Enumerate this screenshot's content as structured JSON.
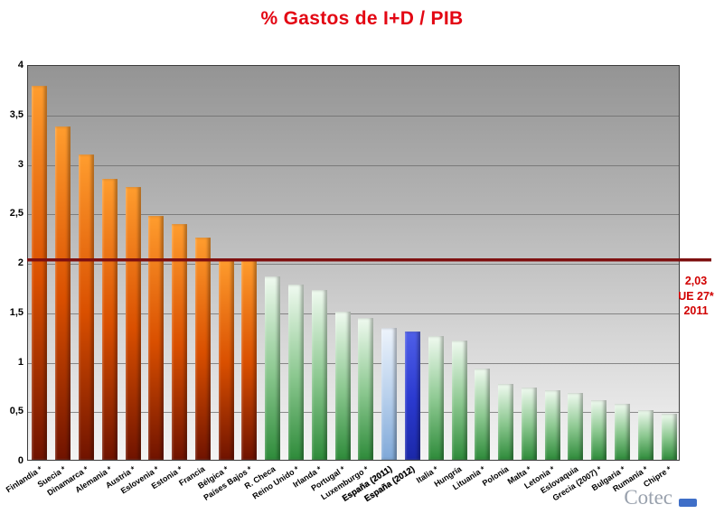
{
  "title": "% Gastos de I+D / PIB",
  "logo": {
    "text": "Cotec",
    "mark_color": "#3f6fc8"
  },
  "chart_data": {
    "type": "bar",
    "title": "% Gastos de I+D / PIB",
    "ylabel": "",
    "xlabel": "",
    "ylim": [
      0,
      4
    ],
    "grid": true,
    "legend_position": "none",
    "yticks": [
      {
        "value": 0,
        "label": "0"
      },
      {
        "value": 0.5,
        "label": "0,5"
      },
      {
        "value": 1,
        "label": "1"
      },
      {
        "value": 1.5,
        "label": "1,5"
      },
      {
        "value": 2,
        "label": "2"
      },
      {
        "value": 2.5,
        "label": "2,5"
      },
      {
        "value": 3,
        "label": "3"
      },
      {
        "value": 3.5,
        "label": "3,5"
      },
      {
        "value": 4,
        "label": "4"
      }
    ],
    "reference_line": {
      "value": 2.03,
      "color": "#7e1010",
      "labels": [
        "2,03",
        "UE 27*",
        "2011"
      ]
    },
    "bars": [
      {
        "label": "Finlandia *",
        "value": 3.78,
        "group": "orange"
      },
      {
        "label": "Suecia *",
        "value": 3.37,
        "group": "orange"
      },
      {
        "label": "Dinamarca *",
        "value": 3.09,
        "group": "orange"
      },
      {
        "label": "Alemania *",
        "value": 2.84,
        "group": "orange"
      },
      {
        "label": "Austria *",
        "value": 2.76,
        "group": "orange"
      },
      {
        "label": "Eslovenia *",
        "value": 2.47,
        "group": "orange"
      },
      {
        "label": "Estonia *",
        "value": 2.38,
        "group": "orange"
      },
      {
        "label": "Francia",
        "value": 2.25,
        "group": "orange"
      },
      {
        "label": "Bélgica *",
        "value": 2.04,
        "group": "orange"
      },
      {
        "label": "Países Bajos *",
        "value": 2.04,
        "group": "orange"
      },
      {
        "label": "R. Checa",
        "value": 1.85,
        "group": "green"
      },
      {
        "label": "Reino Unido *",
        "value": 1.77,
        "group": "green"
      },
      {
        "label": "Irlanda *",
        "value": 1.72,
        "group": "green"
      },
      {
        "label": "Portugal *",
        "value": 1.5,
        "group": "green"
      },
      {
        "label": "Luxemburgo *",
        "value": 1.43,
        "group": "green"
      },
      {
        "label": "España (2011)",
        "value": 1.33,
        "group": "blue_light",
        "emphasis": true
      },
      {
        "label": "España (2012)",
        "value": 1.3,
        "group": "blue_dark",
        "emphasis": true
      },
      {
        "label": "Italia *",
        "value": 1.25,
        "group": "green"
      },
      {
        "label": "Hungría",
        "value": 1.21,
        "group": "green"
      },
      {
        "label": "Lituania *",
        "value": 0.92,
        "group": "green"
      },
      {
        "label": "Polonia",
        "value": 0.77,
        "group": "green"
      },
      {
        "label": "Malta *",
        "value": 0.73,
        "group": "green"
      },
      {
        "label": "Letonia *",
        "value": 0.7,
        "group": "green"
      },
      {
        "label": "Eslovaquia",
        "value": 0.68,
        "group": "green"
      },
      {
        "label": "Grecia (2007) *",
        "value": 0.6,
        "group": "green"
      },
      {
        "label": "Bulgaria *",
        "value": 0.57,
        "group": "green"
      },
      {
        "label": "Rumanía *",
        "value": 0.5,
        "group": "green"
      },
      {
        "label": "Chipre *",
        "value": 0.47,
        "group": "green"
      }
    ],
    "groups": {
      "orange": {
        "top": "#ff9d2e",
        "mid": "#d94f00",
        "bottom": "#701300"
      },
      "green": {
        "top": "#f0faf0",
        "mid": "#8cc890",
        "bottom": "#2e8b3a"
      },
      "blue_light": {
        "top": "#eef4fc",
        "mid": "#b8d0ec",
        "bottom": "#7fa8d8"
      },
      "blue_dark": {
        "top": "#4f5fe8",
        "mid": "#2b3ad0",
        "bottom": "#1b28a8"
      }
    }
  }
}
